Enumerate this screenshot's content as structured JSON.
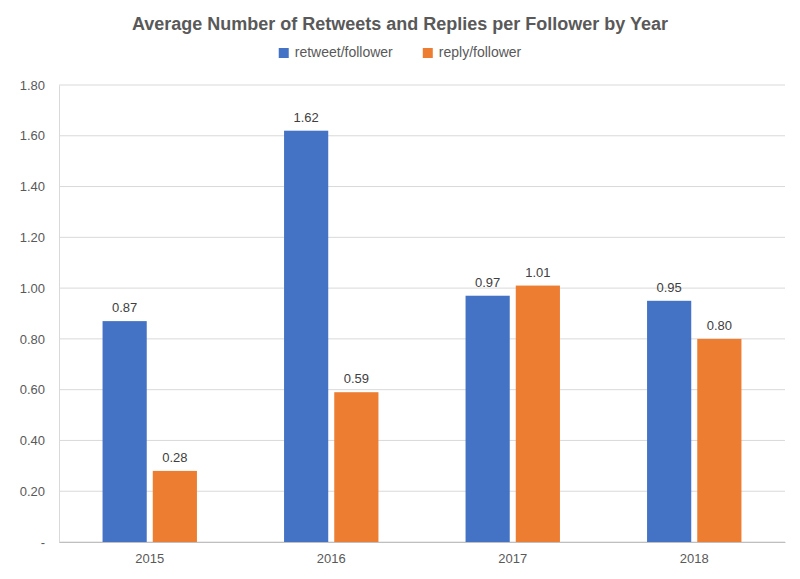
{
  "chart_data": {
    "type": "bar",
    "title": "Average Number of Retweets and Replies per Follower by Year",
    "categories": [
      "2015",
      "2016",
      "2017",
      "2018"
    ],
    "series": [
      {
        "name": "retweet/follower",
        "color": "#4472c4",
        "values": [
          0.87,
          1.62,
          0.97,
          0.95
        ]
      },
      {
        "name": "reply/follower",
        "color": "#ed7d31",
        "values": [
          0.28,
          0.59,
          1.01,
          0.8
        ],
        "value_labels": [
          "0.28",
          "0.59",
          "1.01",
          "0.80"
        ]
      }
    ],
    "ylim": [
      0,
      1.8
    ],
    "yticks": [
      {
        "value": 0,
        "label": "-"
      },
      {
        "value": 0.2,
        "label": "0.20"
      },
      {
        "value": 0.4,
        "label": "0.40"
      },
      {
        "value": 0.6,
        "label": "0.60"
      },
      {
        "value": 0.8,
        "label": "0.80"
      },
      {
        "value": 1.0,
        "label": "1.00"
      },
      {
        "value": 1.2,
        "label": "1.20"
      },
      {
        "value": 1.4,
        "label": "1.40"
      },
      {
        "value": 1.6,
        "label": "1.60"
      },
      {
        "value": 1.8,
        "label": "1.80"
      }
    ],
    "grid": true,
    "legend": "top",
    "data_labels": true
  }
}
